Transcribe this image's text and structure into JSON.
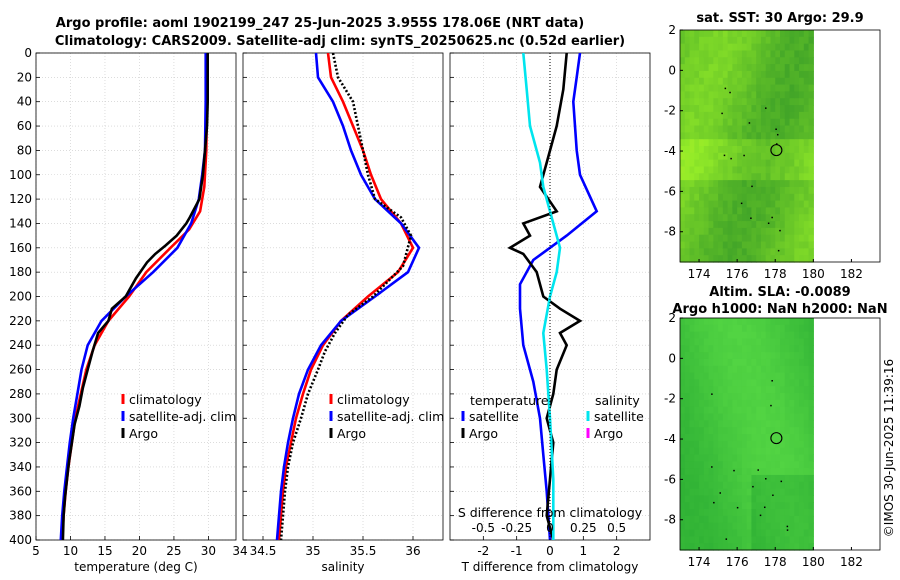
{
  "header": {
    "title_line1": "Argo profile: aoml 1902199_247 25-Jun-2025 3.955S 178.06E (NRT data)",
    "title_line2": "Climatology: CARS2009. Satellite-adj clim: synTS_20250625.nc (0.52d earlier)"
  },
  "colors": {
    "climatology": "#ff0000",
    "satellite": "#0000ff",
    "argo": "#000000",
    "salinity_satellite": "#00e5ee",
    "salinity_argo": "#ff00ff",
    "map_green": "#33cc33"
  },
  "watermark": "©IMOS 30-Jun-2025 11:39:16",
  "chart_data": [
    {
      "type": "line",
      "name": "temperature-profile",
      "xlabel": "temperature (deg C)",
      "ylabel": "",
      "xlim": [
        5,
        34
      ],
      "ylim": [
        0,
        400
      ],
      "yreversed": true,
      "xticks": [
        5,
        10,
        15,
        20,
        25,
        30
      ],
      "yticks": [
        0,
        20,
        40,
        60,
        80,
        100,
        120,
        140,
        160,
        180,
        200,
        220,
        240,
        260,
        280,
        300,
        320,
        340,
        360,
        380,
        400
      ],
      "legend": [
        "climatology",
        "satellite-adj. clim",
        "Argo"
      ],
      "series": [
        {
          "name": "climatology",
          "points": [
            [
              29.8,
              0
            ],
            [
              29.8,
              40
            ],
            [
              29.7,
              80
            ],
            [
              29.4,
              110
            ],
            [
              28.8,
              130
            ],
            [
              27.2,
              145
            ],
            [
              24.5,
              160
            ],
            [
              21,
              180
            ],
            [
              18.5,
              200
            ],
            [
              15.5,
              220
            ],
            [
              13.5,
              240
            ],
            [
              12.3,
              260
            ],
            [
              11.5,
              280
            ],
            [
              10.7,
              300
            ],
            [
              10.2,
              320
            ],
            [
              9.7,
              340
            ],
            [
              9.3,
              360
            ],
            [
              9,
              380
            ],
            [
              8.8,
              400
            ]
          ]
        },
        {
          "name": "satellite-adj. clim",
          "points": [
            [
              29.6,
              0
            ],
            [
              29.6,
              40
            ],
            [
              29.5,
              80
            ],
            [
              29.1,
              100
            ],
            [
              28.6,
              120
            ],
            [
              27.5,
              140
            ],
            [
              25.5,
              160
            ],
            [
              22,
              180
            ],
            [
              18,
              200
            ],
            [
              14.5,
              220
            ],
            [
              12.5,
              240
            ],
            [
              11.6,
              260
            ],
            [
              11,
              280
            ],
            [
              10.4,
              300
            ],
            [
              9.9,
              320
            ],
            [
              9.5,
              340
            ],
            [
              9.1,
              360
            ],
            [
              8.8,
              380
            ],
            [
              8.6,
              400
            ]
          ]
        },
        {
          "name": "Argo",
          "points": [
            [
              29.9,
              0
            ],
            [
              29.9,
              40
            ],
            [
              29.8,
              60
            ],
            [
              29.5,
              80
            ],
            [
              29.2,
              100
            ],
            [
              28.7,
              120
            ],
            [
              27.3,
              135
            ],
            [
              26.8,
              140
            ],
            [
              25.4,
              150
            ],
            [
              23.8,
              158
            ],
            [
              22.3,
              165
            ],
            [
              21.1,
              172
            ],
            [
              19.5,
              185
            ],
            [
              18,
              200
            ],
            [
              16,
              210
            ],
            [
              15.5,
              220
            ],
            [
              14,
              230
            ],
            [
              13.2,
              245
            ],
            [
              12.5,
              260
            ],
            [
              11.8,
              275
            ],
            [
              11.3,
              290
            ],
            [
              10.6,
              305
            ],
            [
              10.2,
              320
            ],
            [
              9.8,
              335
            ],
            [
              9.5,
              350
            ],
            [
              9.2,
              365
            ],
            [
              9,
              380
            ],
            [
              8.9,
              400
            ]
          ]
        }
      ]
    },
    {
      "type": "line",
      "name": "salinity-profile",
      "xlabel": "salinity",
      "xlim": [
        34.3,
        36.3
      ],
      "ylim": [
        0,
        400
      ],
      "yreversed": true,
      "xticks": [
        34.5,
        35,
        35.5,
        36
      ],
      "legend": [
        "climatology",
        "satellite-adj. clim",
        "Argo"
      ],
      "series": [
        {
          "name": "climatology",
          "points": [
            [
              35.15,
              0
            ],
            [
              35.18,
              20
            ],
            [
              35.3,
              40
            ],
            [
              35.4,
              60
            ],
            [
              35.5,
              80
            ],
            [
              35.58,
              100
            ],
            [
              35.68,
              120
            ],
            [
              35.88,
              140
            ],
            [
              36,
              160
            ],
            [
              35.85,
              180
            ],
            [
              35.55,
              200
            ],
            [
              35.28,
              220
            ],
            [
              35.1,
              240
            ],
            [
              34.98,
              260
            ],
            [
              34.9,
              280
            ],
            [
              34.83,
              300
            ],
            [
              34.78,
              320
            ],
            [
              34.73,
              340
            ],
            [
              34.7,
              360
            ],
            [
              34.68,
              380
            ],
            [
              34.66,
              400
            ]
          ]
        },
        {
          "name": "satellite-adj. clim",
          "points": [
            [
              35.03,
              0
            ],
            [
              35.05,
              20
            ],
            [
              35.2,
              40
            ],
            [
              35.3,
              60
            ],
            [
              35.38,
              80
            ],
            [
              35.48,
              100
            ],
            [
              35.62,
              120
            ],
            [
              35.88,
              140
            ],
            [
              36.06,
              160
            ],
            [
              35.95,
              180
            ],
            [
              35.62,
              200
            ],
            [
              35.28,
              220
            ],
            [
              35.08,
              240
            ],
            [
              34.95,
              260
            ],
            [
              34.86,
              280
            ],
            [
              34.8,
              300
            ],
            [
              34.75,
              320
            ],
            [
              34.71,
              340
            ],
            [
              34.68,
              360
            ],
            [
              34.66,
              380
            ],
            [
              34.64,
              400
            ]
          ]
        },
        {
          "name": "Argo",
          "points": [
            [
              35.2,
              0
            ],
            [
              35.25,
              20
            ],
            [
              35.4,
              40
            ],
            [
              35.45,
              60
            ],
            [
              35.5,
              80
            ],
            [
              35.55,
              100
            ],
            [
              35.62,
              120
            ],
            [
              35.88,
              135
            ],
            [
              35.98,
              150
            ],
            [
              35.9,
              175
            ],
            [
              35.6,
              200
            ],
            [
              35.35,
              215
            ],
            [
              35.22,
              230
            ],
            [
              35.12,
              245
            ],
            [
              35.05,
              260
            ],
            [
              34.95,
              280
            ],
            [
              34.88,
              300
            ],
            [
              34.8,
              320
            ],
            [
              34.75,
              340
            ],
            [
              34.72,
              360
            ],
            [
              34.7,
              380
            ],
            [
              34.68,
              400
            ]
          ]
        }
      ]
    },
    {
      "type": "line",
      "name": "difference-profile",
      "xlabel": "T difference from climatology",
      "xlim": [
        -3,
        3
      ],
      "ylim": [
        0,
        400
      ],
      "yreversed": true,
      "xticks": [
        -2,
        -1,
        0,
        1,
        2
      ],
      "top_axis_label": "S difference from climatology",
      "top_ticks": [
        "-0.5",
        "-0.25",
        "0",
        "0.25",
        "0.5"
      ],
      "legend_left_title": "temperature",
      "legend_right_title": "salinity",
      "legend": [
        "satellite",
        "Argo",
        "satellite",
        "Argo"
      ],
      "series": [
        {
          "name": "T satellite",
          "points": [
            [
              0.9,
              0
            ],
            [
              0.8,
              20
            ],
            [
              0.7,
              40
            ],
            [
              0.75,
              60
            ],
            [
              0.8,
              80
            ],
            [
              0.9,
              100
            ],
            [
              1.4,
              130
            ],
            [
              0.5,
              150
            ],
            [
              -0.5,
              170
            ],
            [
              -0.9,
              190
            ],
            [
              -0.9,
              210
            ],
            [
              -0.8,
              240
            ],
            [
              -0.5,
              270
            ],
            [
              -0.3,
              300
            ],
            [
              -0.2,
              330
            ],
            [
              -0.1,
              360
            ],
            [
              0,
              400
            ]
          ]
        },
        {
          "name": "T Argo",
          "points": [
            [
              0.5,
              0
            ],
            [
              0.4,
              30
            ],
            [
              0.2,
              60
            ],
            [
              -0.1,
              90
            ],
            [
              -0.3,
              110
            ],
            [
              0.2,
              130
            ],
            [
              -0.8,
              140
            ],
            [
              -0.6,
              150
            ],
            [
              -1.2,
              160
            ],
            [
              -0.8,
              165
            ],
            [
              -0.4,
              180
            ],
            [
              -0.2,
              200
            ],
            [
              0.3,
              210
            ],
            [
              0.9,
              220
            ],
            [
              0.3,
              230
            ],
            [
              0.5,
              240
            ],
            [
              0.2,
              260
            ],
            [
              0.1,
              280
            ],
            [
              -0.1,
              300
            ],
            [
              0.1,
              320
            ],
            [
              0,
              350
            ],
            [
              -0.1,
              380
            ],
            [
              0.1,
              400
            ]
          ]
        },
        {
          "name": "S satellite",
          "points": [
            [
              -0.8,
              0
            ],
            [
              -0.7,
              30
            ],
            [
              -0.6,
              60
            ],
            [
              -0.3,
              90
            ],
            [
              -0.2,
              110
            ],
            [
              0.1,
              140
            ],
            [
              0.3,
              160
            ],
            [
              0.2,
              180
            ],
            [
              0,
              200
            ],
            [
              -0.2,
              230
            ],
            [
              -0.1,
              260
            ],
            [
              0,
              300
            ],
            [
              0.1,
              350
            ],
            [
              0.1,
              400
            ]
          ]
        }
      ]
    },
    {
      "type": "heatmap",
      "name": "sst-map",
      "title": "sat. SST: 30 Argo: 29.9",
      "xlim": [
        173,
        183.5
      ],
      "ylim": [
        -9.5,
        2
      ],
      "xticks": [
        174,
        176,
        178,
        180,
        182
      ],
      "yticks": [
        2,
        0,
        -2,
        -4,
        -6,
        -8
      ],
      "marker": [
        178.06,
        -3.955
      ]
    },
    {
      "type": "heatmap",
      "name": "sla-map",
      "title": "Altim. SLA: -0.0089",
      "subtitle": "Argo h1000: NaN h2000: NaN",
      "xlim": [
        173,
        183.5
      ],
      "ylim": [
        -9.5,
        2
      ],
      "xticks": [
        174,
        176,
        178,
        180,
        182
      ],
      "yticks": [
        2,
        0,
        -2,
        -4,
        -6,
        -8
      ],
      "marker": [
        178.06,
        -3.955
      ]
    }
  ]
}
